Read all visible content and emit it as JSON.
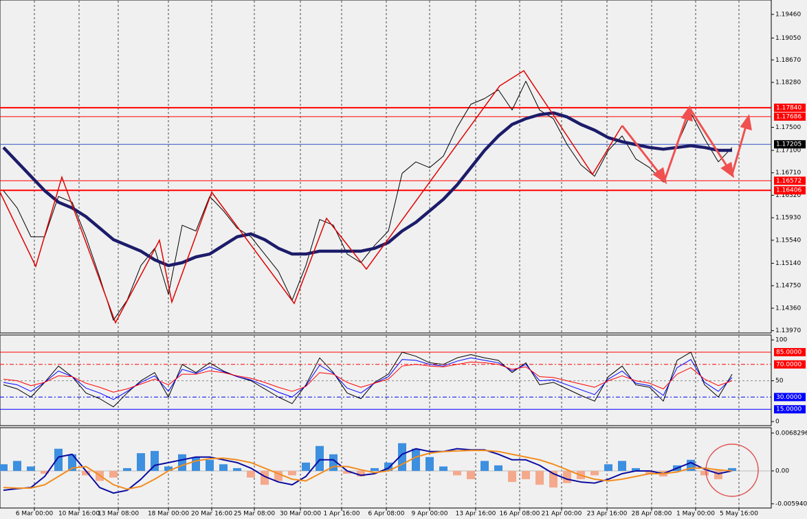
{
  "chart_data": [
    {
      "type": "line",
      "ylim": [
        1.1393,
        1.1971
      ],
      "yticks": [
        {
          "value": 1.1946,
          "label": "1.19460"
        },
        {
          "value": 1.1905,
          "label": "1.19050"
        },
        {
          "value": 1.1867,
          "label": "1.18670"
        },
        {
          "value": 1.1828,
          "label": "1.18280"
        },
        {
          "value": 1.175,
          "label": "1.17500"
        },
        {
          "value": 1.171,
          "label": "1.17100"
        },
        {
          "value": 1.1671,
          "label": "1.16710"
        },
        {
          "value": 1.1632,
          "label": "1.16320"
        },
        {
          "value": 1.1593,
          "label": "1.15930"
        },
        {
          "value": 1.1554,
          "label": "1.15540"
        },
        {
          "value": 1.1514,
          "label": "1.15140"
        },
        {
          "value": 1.1475,
          "label": "1.14750"
        },
        {
          "value": 1.1436,
          "label": "1.14360"
        },
        {
          "value": 1.1397,
          "label": "1.13970"
        }
      ],
      "levels": [
        {
          "value": 1.1784,
          "label": "1.17840",
          "color": "#ff0000"
        },
        {
          "value": 1.17686,
          "label": "1.17686",
          "color": "#ff0000"
        },
        {
          "value": 1.17205,
          "label": "1.17205",
          "color": "#3050c0"
        },
        {
          "value": 1.16572,
          "label": "1.16572",
          "color": "#ff0000"
        },
        {
          "value": 1.16406,
          "label": "1.16406",
          "color": "#ff0000"
        }
      ],
      "series": [
        {
          "color": "#000000",
          "values": [
            1.164,
            1.161,
            1.156,
            1.156,
            1.163,
            1.162,
            1.156,
            1.149,
            1.1415,
            1.145,
            1.151,
            1.154,
            1.146,
            1.158,
            1.157,
            1.163,
            1.1605,
            1.1575,
            1.156,
            1.153,
            1.15,
            1.145,
            1.151,
            1.159,
            1.158,
            1.153,
            1.1515,
            1.1545,
            1.157,
            1.167,
            1.169,
            1.168,
            1.17,
            1.175,
            1.179,
            1.18,
            1.1815,
            1.178,
            1.183,
            1.178,
            1.1765,
            1.172,
            1.1685,
            1.1665,
            1.171,
            1.1735,
            1.1695,
            1.168,
            1.1655,
            1.172,
            1.1775,
            1.173,
            1.169,
            1.1715
          ]
        },
        {
          "color": "#1c1c6a",
          "values": [
            1.1715,
            1.169,
            1.1665,
            1.164,
            1.162,
            1.161,
            1.1595,
            1.1575,
            1.1555,
            1.1545,
            1.1535,
            1.152,
            1.151,
            1.1515,
            1.1525,
            1.153,
            1.1545,
            1.156,
            1.1565,
            1.1555,
            1.154,
            1.153,
            1.153,
            1.1535,
            1.1535,
            1.1535,
            1.1535,
            1.154,
            1.155,
            1.157,
            1.1585,
            1.1605,
            1.1625,
            1.165,
            1.168,
            1.171,
            1.1735,
            1.1755,
            1.1765,
            1.1772,
            1.1775,
            1.1768,
            1.1755,
            1.1745,
            1.1732,
            1.1725,
            1.172,
            1.1715,
            1.1712,
            1.1715,
            1.1718,
            1.1715,
            1.171,
            1.171
          ]
        }
      ]
    },
    {
      "type": "line",
      "ylim": [
        -5,
        106
      ],
      "yticks": [
        0,
        50,
        100
      ],
      "levels": [
        {
          "value": 85,
          "label": "85.0000",
          "color": "#ff0000"
        },
        {
          "value": 70,
          "label": "70.0000",
          "color": "#ff0000"
        },
        {
          "value": 30,
          "label": "30.0000",
          "color": "#0000ff"
        },
        {
          "value": 15,
          "label": "15.0000",
          "color": "#0000ff"
        }
      ],
      "series": [
        {
          "color": "#000000",
          "values": [
            45,
            40,
            30,
            48,
            68,
            55,
            35,
            28,
            18,
            35,
            50,
            60,
            30,
            70,
            60,
            72,
            62,
            55,
            50,
            40,
            30,
            22,
            45,
            78,
            60,
            35,
            28,
            48,
            58,
            85,
            80,
            72,
            70,
            78,
            82,
            78,
            75,
            60,
            72,
            45,
            48,
            40,
            32,
            25,
            55,
            68,
            45,
            42,
            25,
            75,
            85,
            45,
            30,
            58
          ]
        },
        {
          "color": "#0000ff",
          "values": [
            48,
            45,
            37,
            48,
            62,
            55,
            41,
            35,
            27,
            37,
            48,
            56,
            37,
            64,
            59,
            67,
            61,
            55,
            51,
            44,
            36,
            30,
            44,
            69,
            59,
            41,
            35,
            47,
            55,
            76,
            75,
            70,
            68,
            74,
            78,
            75,
            72,
            62,
            70,
            50,
            51,
            45,
            39,
            33,
            52,
            62,
            47,
            44,
            32,
            66,
            76,
            48,
            37,
            54
          ]
        },
        {
          "color": "#ff0000",
          "values": [
            52,
            50,
            44,
            48,
            56,
            55,
            47,
            42,
            36,
            40,
            46,
            52,
            45,
            58,
            58,
            62,
            60,
            56,
            53,
            48,
            42,
            37,
            43,
            60,
            58,
            48,
            42,
            47,
            52,
            68,
            70,
            68,
            67,
            70,
            73,
            72,
            70,
            64,
            67,
            55,
            54,
            50,
            46,
            42,
            50,
            56,
            50,
            47,
            40,
            58,
            66,
            52,
            44,
            50
          ]
        }
      ]
    },
    {
      "type": "macd",
      "ylim": [
        -0.0067,
        0.0078
      ],
      "yticks": [
        0.0068296,
        {
          "value": 0,
          "label": "0.00"
        },
        {
          "value": -0.00594,
          "label": "-0.005940"
        }
      ],
      "xticks": [
        {
          "value": 2.25,
          "label": "6 Mar 00:00"
        },
        {
          "value": 5.5,
          "label": "10 Mar 16:00"
        },
        {
          "value": 8.35,
          "label": "13 Mar 08:00"
        },
        {
          "value": 12,
          "label": "18 Mar 00:00"
        },
        {
          "value": 15.15,
          "label": "20 Mar 16:00"
        },
        {
          "value": 18.25,
          "label": "25 Mar 08:00"
        },
        {
          "value": 21.6,
          "label": "30 Mar 00:00"
        },
        {
          "value": 24.6,
          "label": "1 Apr 16:00"
        },
        {
          "value": 27.85,
          "label": "6 Apr 08:00"
        },
        {
          "value": 31,
          "label": "9 Apr 00:00"
        },
        {
          "value": 34.35,
          "label": "13 Apr 16:00"
        },
        {
          "value": 37.55,
          "label": "16 Apr 08:00"
        },
        {
          "value": 40.6,
          "label": "21 Apr 00:00"
        },
        {
          "value": 43.9,
          "label": "23 Apr 16:00"
        },
        {
          "value": 47.15,
          "label": "28 Apr 08:00"
        },
        {
          "value": 50.35,
          "label": "1 May 00:00"
        },
        {
          "value": 53.5,
          "label": "5 May 16:00"
        }
      ],
      "histogram": {
        "colors": [
          "#3d8fe0",
          "#f4a98c"
        ],
        "values": [
          0.0012,
          0.0018,
          0.0008,
          -0.0005,
          0.004,
          0.003,
          -0.0008,
          -0.0018,
          -0.0012,
          0.0005,
          0.0032,
          0.0036,
          0.0008,
          0.003,
          0.0025,
          0.002,
          0.0012,
          0.0005,
          -0.0012,
          -0.0025,
          -0.0018,
          -0.0008,
          0.0015,
          0.0045,
          0.003,
          -0.0005,
          -0.001,
          0.0005,
          0.0015,
          0.005,
          0.004,
          0.0025,
          0.0008,
          -0.0008,
          -0.0015,
          0.0018,
          0.001,
          -0.002,
          -0.0015,
          -0.0025,
          -0.003,
          -0.0022,
          -0.0015,
          -0.0008,
          0.0012,
          0.0018,
          0.0005,
          -0.0005,
          -0.001,
          0.001,
          0.002,
          -0.0008,
          -0.0015,
          0.0005
        ]
      },
      "series": [
        {
          "color": "#0a0aa0",
          "values": [
            -0.0035,
            -0.0032,
            -0.003,
            -0.001,
            0.0025,
            0.003,
            0,
            -0.003,
            -0.004,
            -0.0035,
            -0.0015,
            0.001,
            0.0015,
            0.002,
            0.0025,
            0.0025,
            0.002,
            0.0015,
            0.0005,
            -0.001,
            -0.002,
            -0.0025,
            -0.001,
            0.002,
            0.002,
            0,
            -0.0008,
            -0.0005,
            0.0005,
            0.003,
            0.004,
            0.0035,
            0.0035,
            0.004,
            0.0038,
            0.0038,
            0.003,
            0.002,
            0.002,
            0.001,
            -0.0005,
            -0.0015,
            -0.002,
            -0.0022,
            -0.0015,
            -0.0005,
            0,
            0,
            -0.0005,
            0.0005,
            0.0015,
            0.0003,
            -0.0005,
            0
          ]
        },
        {
          "color": "#f28c1c",
          "values": [
            -0.003,
            -0.0031,
            -0.0031,
            -0.0025,
            -0.001,
            0.0005,
            0.0008,
            -0.0008,
            -0.0025,
            -0.0033,
            -0.0028,
            -0.0015,
            0,
            0.001,
            0.0018,
            0.0022,
            0.0023,
            0.002,
            0.0015,
            0.0005,
            -0.0005,
            -0.0015,
            -0.0018,
            -0.0005,
            0.0008,
            0.0008,
            0.0002,
            -0.0003,
            0,
            0.0012,
            0.0025,
            0.0032,
            0.0035,
            0.0036,
            0.0037,
            0.0037,
            0.0035,
            0.003,
            0.0025,
            0.002,
            0.0012,
            0.0002,
            -0.0008,
            -0.0015,
            -0.0018,
            -0.0015,
            -0.001,
            -0.0005,
            -0.0005,
            -0.0002,
            0.0005,
            0.0005,
            0.0002,
            0
          ]
        }
      ]
    }
  ]
}
